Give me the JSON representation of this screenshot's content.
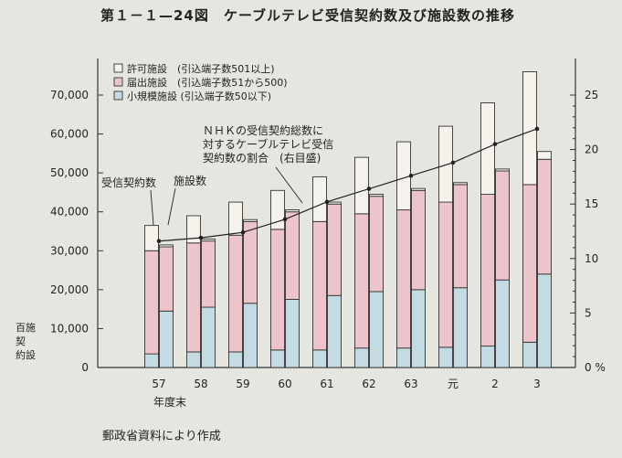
{
  "figure": {
    "title": "第１－１—24図　ケーブルテレビ受信契約数及び施設数の推移",
    "source": "郵政省資料により作成"
  },
  "chart_data": {
    "type": "bar",
    "categories": [
      "57",
      "58",
      "59",
      "60",
      "61",
      "62",
      "63",
      "元",
      "2",
      "3"
    ],
    "xlabel": "年度末",
    "left_axis": {
      "ticks": [
        0,
        10000,
        20000,
        30000,
        40000,
        50000,
        60000,
        70000
      ],
      "tick_labels": [
        "0",
        "10,000",
        "20,000",
        "30,000",
        "40,000",
        "50,000",
        "60,000",
        "70,000"
      ],
      "range": [
        0,
        70000
      ],
      "label_top": "百施",
      "label_bottom": "契約設"
    },
    "right_axis": {
      "ticks": [
        0,
        5,
        10,
        15,
        20,
        25
      ],
      "tick_labels": [
        "0 %",
        "5",
        "10",
        "15",
        "20",
        "25"
      ],
      "range": [
        0,
        25
      ]
    },
    "legend": [
      {
        "name": "許可施設　(引込端子数501以上)",
        "color": "#f4f2ea"
      },
      {
        "name": "届出施設　(引込端子数51から500)",
        "color": "#eec4cc"
      },
      {
        "name": "小規模施設 (引込端子数50以下)",
        "color": "#c5dbe3"
      }
    ],
    "series": [
      {
        "name": "受信契約数",
        "type": "stacked",
        "components": {
          "小規模施設": [
            3500,
            4000,
            4000,
            4500,
            4500,
            5000,
            5000,
            5200,
            5500,
            6500
          ],
          "届出施設": [
            26500,
            28000,
            30000,
            31000,
            33000,
            34500,
            35500,
            37300,
            39000,
            40500
          ],
          "許可施設": [
            6500,
            7000,
            8500,
            10000,
            11500,
            14500,
            17500,
            19500,
            23500,
            29000
          ]
        }
      },
      {
        "name": "施設数",
        "type": "stacked",
        "components": {
          "小規模施設": [
            14500,
            15500,
            16500,
            17500,
            18500,
            19500,
            20000,
            20500,
            22500,
            24000
          ],
          "届出施設": [
            16500,
            17000,
            21000,
            22500,
            23500,
            24500,
            25500,
            26500,
            28000,
            29500
          ],
          "許可施設": [
            500,
            500,
            500,
            500,
            500,
            500,
            500,
            500,
            500,
            2000
          ]
        }
      },
      {
        "name": "NHKの受信契約総数に対するケーブルテレビ受信契約数の割合　(右目盛)",
        "type": "line",
        "axis": "right",
        "values": [
          11.6,
          11.9,
          12.4,
          13.6,
          15.2,
          16.4,
          17.6,
          18.8,
          20.5,
          21.9
        ]
      }
    ],
    "annotations": {
      "contracts_label": "受信契約数",
      "facilities_label": "施設数",
      "ratio_label_lines": [
        "ＮＨＫの受信契約総数に",
        "対するケーブルテレビ受信",
        "契約数の割合　(右目盛)"
      ]
    },
    "grid": false
  }
}
